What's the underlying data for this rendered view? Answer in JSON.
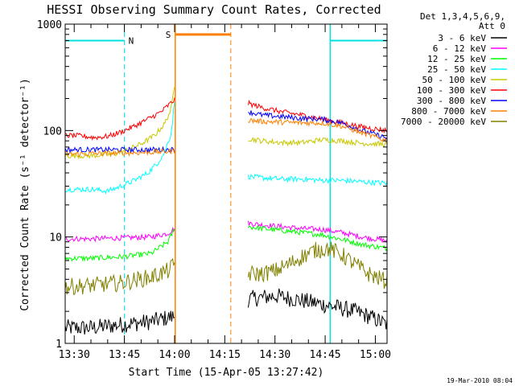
{
  "chart_data": {
    "type": "line",
    "title": "HESSI Observing Summary Count Rates, Corrected",
    "xlabel": "Start Time (15-Apr-05 13:27:42)",
    "ylabel": "Corrected Count Rate (s⁻¹ detector⁻¹)",
    "yscale": "log",
    "ylim": [
      1,
      1000
    ],
    "xlim_minutes": [
      -2.7,
      93.5
    ],
    "x_tick_labels": [
      "13:30",
      "13:45",
      "14:00",
      "14:15",
      "14:30",
      "14:45",
      "15:00"
    ],
    "x_tick_minutes": [
      0,
      15,
      30,
      45,
      60,
      75,
      90
    ],
    "y_tick_labels": [
      "1",
      "10",
      "100",
      "1000"
    ],
    "y_tick_values": [
      1,
      10,
      100,
      1000
    ],
    "legend": {
      "position": "right",
      "header": [
        "Det 1,3,4,5,6,9,",
        "Att 0"
      ]
    },
    "series": [
      {
        "name": "3 - 6 keV",
        "color": "#000000",
        "segments": [
          {
            "x": [
              -2.7,
              5,
              14,
              23,
              30
            ],
            "y": [
              1.4,
              1.4,
              1.5,
              1.6,
              1.8
            ]
          },
          {
            "x": [
              52,
              56,
              60,
              66,
              72,
              78,
              84,
              88,
              93.5
            ],
            "y": [
              2.6,
              2.7,
              2.8,
              2.6,
              2.4,
              2.2,
              2.0,
              1.8,
              1.5
            ]
          }
        ]
      },
      {
        "name": "6 - 12 keV",
        "color": "#ff00ff",
        "segments": [
          {
            "x": [
              -2.7,
              5,
              14,
              23,
              28,
              30
            ],
            "y": [
              9.6,
              9.6,
              9.8,
              10.0,
              10.8,
              12.0
            ]
          },
          {
            "x": [
              52,
              56,
              62,
              68,
              74,
              80,
              86,
              93.5
            ],
            "y": [
              13.5,
              13.0,
              12.5,
              12.0,
              11.8,
              11.0,
              10.0,
              9.2
            ]
          }
        ]
      },
      {
        "name": "12 - 25 keV",
        "color": "#00ff00",
        "segments": [
          {
            "x": [
              -2.7,
              5,
              14,
              23,
              28,
              30
            ],
            "y": [
              6.3,
              6.3,
              6.5,
              7.0,
              9.0,
              12.0
            ]
          },
          {
            "x": [
              52,
              56,
              62,
              68,
              74,
              80,
              86,
              93.5
            ],
            "y": [
              12.5,
              12.0,
              11.5,
              11.0,
              10.5,
              9.5,
              8.5,
              7.8
            ]
          }
        ]
      },
      {
        "name": "25 - 50 keV",
        "color": "#00ffff",
        "segments": [
          {
            "x": [
              -2.7,
              5,
              10,
              14,
              18,
              22,
              25,
              27,
              29,
              30
            ],
            "y": [
              28,
              28,
              27,
              30,
              34,
              40,
              50,
              62,
              95,
              190
            ]
          },
          {
            "x": [
              52,
              56,
              62,
              68,
              74,
              80,
              86,
              93.5
            ],
            "y": [
              37,
              36,
              35,
              35,
              34,
              34,
              33,
              32
            ]
          }
        ]
      },
      {
        "name": "50 - 100 keV",
        "color": "#c8c800",
        "segments": [
          {
            "x": [
              -2.7,
              5,
              12,
              16,
              20,
              24,
              27,
              29,
              30
            ],
            "y": [
              58,
              58,
              60,
              66,
              75,
              90,
              115,
              160,
              270
            ]
          },
          {
            "x": [
              52,
              56,
              62,
              68,
              74,
              80,
              86,
              93.5
            ],
            "y": [
              84,
              80,
              77,
              77,
              82,
              80,
              76,
              74
            ]
          }
        ]
      },
      {
        "name": "100 - 300 keV",
        "color": "#ff0000",
        "segments": [
          {
            "x": [
              -2.7,
              2,
              6,
              10,
              14,
              18,
              22,
              26,
              30
            ],
            "y": [
              90,
              89,
              86,
              88,
              97,
              110,
              128,
              150,
              195
            ]
          },
          {
            "x": [
              52,
              56,
              62,
              68,
              74,
              80,
              86,
              93.5
            ],
            "y": [
              180,
              165,
              150,
              140,
              128,
              118,
              108,
              100
            ]
          }
        ]
      },
      {
        "name": "300 - 800 keV",
        "color": "#0000ff",
        "segments": [
          {
            "x": [
              -2.7,
              10,
              20,
              30
            ],
            "y": [
              66,
              66,
              66,
              66
            ]
          },
          {
            "x": [
              52,
              56,
              62,
              68,
              74,
              80,
              86,
              93.5
            ],
            "y": [
              150,
              140,
              135,
              130,
              128,
              118,
              100,
              85
            ]
          }
        ]
      },
      {
        "name": "800 - 7000 keV",
        "color": "#ff8000",
        "segments": [
          {
            "x": [
              -2.7,
              10,
              20,
              30
            ],
            "y": [
              60,
              61,
              62,
              64
            ]
          },
          {
            "x": [
              52,
              56,
              62,
              68,
              74,
              80,
              86,
              93.5
            ],
            "y": [
              125,
              122,
              120,
              118,
              118,
              110,
              95,
              80
            ]
          }
        ]
      },
      {
        "name": "7000 - 20000 keV",
        "color": "#808000",
        "segments": [
          {
            "x": [
              -2.7,
              5,
              14,
              23,
              28,
              30
            ],
            "y": [
              3.4,
              3.5,
              3.7,
              4.2,
              4.8,
              5.5
            ]
          },
          {
            "x": [
              52,
              56,
              60,
              64,
              68,
              72,
              76,
              80,
              84,
              88,
              93.5
            ],
            "y": [
              4.5,
              4.5,
              4.8,
              5.5,
              6.5,
              7.5,
              7.8,
              6.8,
              5.5,
              4.5,
              3.8
            ]
          }
        ]
      }
    ],
    "annotations": [
      {
        "label": "N",
        "color": "#00e0e0",
        "type": "night",
        "intervals": [
          [
            -2.7,
            15
          ],
          [
            76.5,
            93.5
          ]
        ],
        "bar_value": 700
      },
      {
        "label": "S",
        "color": "#ff8000",
        "type": "saa",
        "intervals": [
          [
            30.2,
            46.8
          ]
        ],
        "bar_value": 800
      }
    ]
  },
  "footer": {
    "timestamp": "19-Mar-2010 08:04"
  }
}
